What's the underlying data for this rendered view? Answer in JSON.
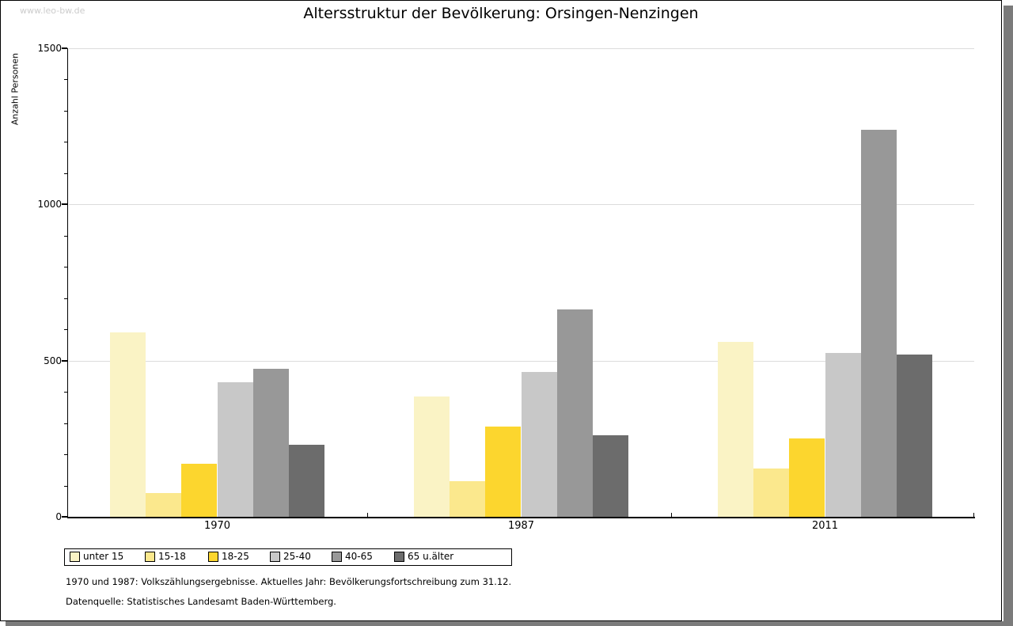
{
  "page": {
    "watermark": "www.leo-bw.de",
    "title": "Altersstruktur der Bevölkerung: Orsingen-Nenzingen",
    "footnotes": [
      "1970 und 1987: Volkszählungsergebnisse. Aktuelles Jahr: Bevölkerungsfortschreibung zum 31.12.",
      "Datenquelle: Statistisches Landesamt Baden-Württemberg."
    ]
  },
  "chart_data": {
    "type": "bar",
    "title": "Altersstruktur der Bevölkerung: Orsingen-Nenzingen",
    "xlabel": "",
    "ylabel": "Anzahl Personen",
    "ylim": [
      0,
      1500
    ],
    "y_major_ticks": [
      0,
      500,
      1000,
      1500
    ],
    "y_minor_step": 100,
    "gridlines_at": [
      500,
      1000,
      1500
    ],
    "grid": "horizontal-major",
    "legend_position": "bottom",
    "categories": [
      "1970",
      "1987",
      "2011"
    ],
    "series": [
      {
        "name": "unter 15",
        "color": "#FAF3C5",
        "values": [
          590,
          385,
          560
        ]
      },
      {
        "name": "15-18",
        "color": "#FBE88D",
        "values": [
          75,
          115,
          155
        ]
      },
      {
        "name": "18-25",
        "color": "#FCD62E",
        "values": [
          170,
          290,
          250
        ]
      },
      {
        "name": "25-40",
        "color": "#C8C8C8",
        "values": [
          430,
          465,
          525
        ]
      },
      {
        "name": "40-65",
        "color": "#989898",
        "values": [
          475,
          665,
          1240
        ]
      },
      {
        "name": "65 u.älter",
        "color": "#6C6C6C",
        "values": [
          230,
          260,
          520
        ]
      }
    ]
  },
  "colors": {
    "gridline": "#DCDCDC",
    "axis": "#000000",
    "shadow": "#7B7B7B",
    "watermark": "#CCCCCC"
  }
}
